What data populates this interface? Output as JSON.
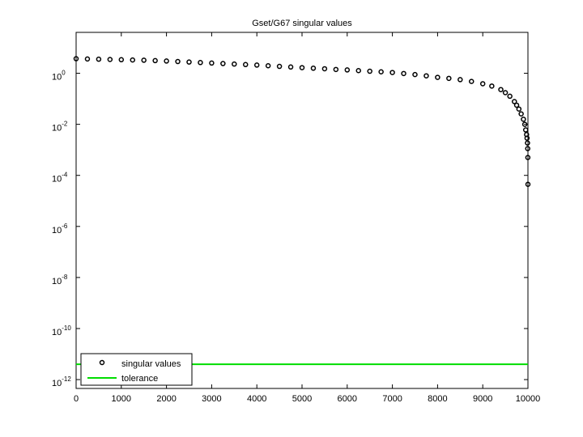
{
  "chart_data": {
    "type": "scatter",
    "title": "Gset/G67 singular values",
    "yscale": "log",
    "legend": "lower left",
    "xlim": [
      0,
      10000
    ],
    "xticks": [
      0,
      1000,
      2000,
      3000,
      4000,
      5000,
      6000,
      7000,
      8000,
      9000,
      10000
    ],
    "ylim": [
      4.5e-13,
      40
    ],
    "yticks": [
      {
        "value": 1e-12,
        "label": "10^-12"
      },
      {
        "value": 1e-10,
        "label": "10^-10"
      },
      {
        "value": 1e-08,
        "label": "10^-8"
      },
      {
        "value": 1e-06,
        "label": "10^-6"
      },
      {
        "value": 0.0001,
        "label": "10^-4"
      },
      {
        "value": 0.01,
        "label": "10^-2"
      },
      {
        "value": 1,
        "label": "10^0"
      }
    ],
    "series": [
      {
        "name": "singular values",
        "color": "#000000",
        "marker": "circle",
        "x": [
          0,
          250,
          500,
          750,
          1000,
          1250,
          1500,
          1750,
          2000,
          2250,
          2500,
          2750,
          3000,
          3250,
          3500,
          3750,
          4000,
          4250,
          4500,
          4750,
          5000,
          5250,
          5500,
          5750,
          6000,
          6250,
          6500,
          6750,
          7000,
          7250,
          7500,
          7750,
          8000,
          8250,
          8500,
          8750,
          9000,
          9200,
          9400,
          9500,
          9600,
          9700,
          9750,
          9800,
          9850,
          9900,
          9930,
          9950,
          9970,
          9980,
          9990,
          9995,
          9998,
          10000
        ],
        "values": [
          3.72,
          3.63,
          3.55,
          3.47,
          3.39,
          3.31,
          3.24,
          3.13,
          3.02,
          2.88,
          2.75,
          2.63,
          2.51,
          2.4,
          2.29,
          2.19,
          2.09,
          1.97,
          1.86,
          1.76,
          1.66,
          1.58,
          1.5,
          1.41,
          1.35,
          1.27,
          1.2,
          1.14,
          1.07,
          0.977,
          0.891,
          0.794,
          0.692,
          0.631,
          0.562,
          0.479,
          0.389,
          0.316,
          0.229,
          0.174,
          0.126,
          0.0776,
          0.0562,
          0.0398,
          0.0257,
          0.0158,
          0.01,
          0.00603,
          0.00398,
          0.00288,
          0.00186,
          0.00112,
          0.000501,
          4.47e-05
        ]
      },
      {
        "name": "tolerance",
        "color": "#00dd00",
        "marker": "line",
        "x": [
          0,
          10000
        ],
        "values": [
          4e-12,
          4e-12
        ]
      }
    ]
  }
}
